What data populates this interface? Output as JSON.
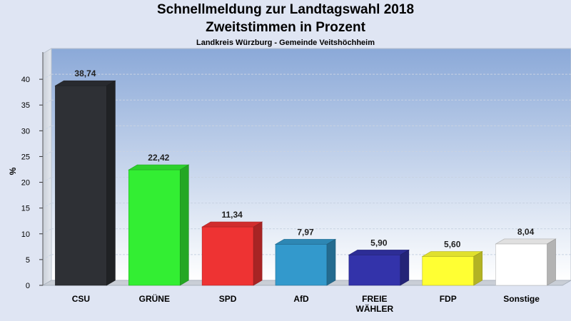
{
  "chart_data": {
    "type": "bar",
    "title": "Schnellmeldung zur Landtagswahl 2018",
    "title_line2": "Zweitstimmen in Prozent",
    "subtitle": "Landkreis Würzburg - Gemeinde Veitshöchheim",
    "ylabel": "%",
    "xlabel": "",
    "ylim": [
      0,
      45
    ],
    "yticks": [
      0,
      5,
      10,
      15,
      20,
      25,
      30,
      35,
      40
    ],
    "grid": true,
    "legend": "none",
    "categories": [
      {
        "lines": [
          "CSU"
        ]
      },
      {
        "lines": [
          "GRÜNE"
        ]
      },
      {
        "lines": [
          "SPD"
        ]
      },
      {
        "lines": [
          "AfD"
        ]
      },
      {
        "lines": [
          "FREIE",
          "WÄHLER"
        ]
      },
      {
        "lines": [
          "FDP"
        ]
      },
      {
        "lines": [
          "Sonstige"
        ]
      }
    ],
    "values": [
      38.74,
      22.42,
      11.34,
      7.97,
      5.9,
      5.6,
      8.04
    ],
    "value_labels": [
      "38,74",
      "22,42",
      "11,34",
      "7,97",
      "5,90",
      "5,60",
      "8,04"
    ],
    "colors": [
      "#2e3035",
      "#33ee33",
      "#ee3333",
      "#3399cc",
      "#3333aa",
      "#ffff33",
      "#ffffff"
    ]
  }
}
